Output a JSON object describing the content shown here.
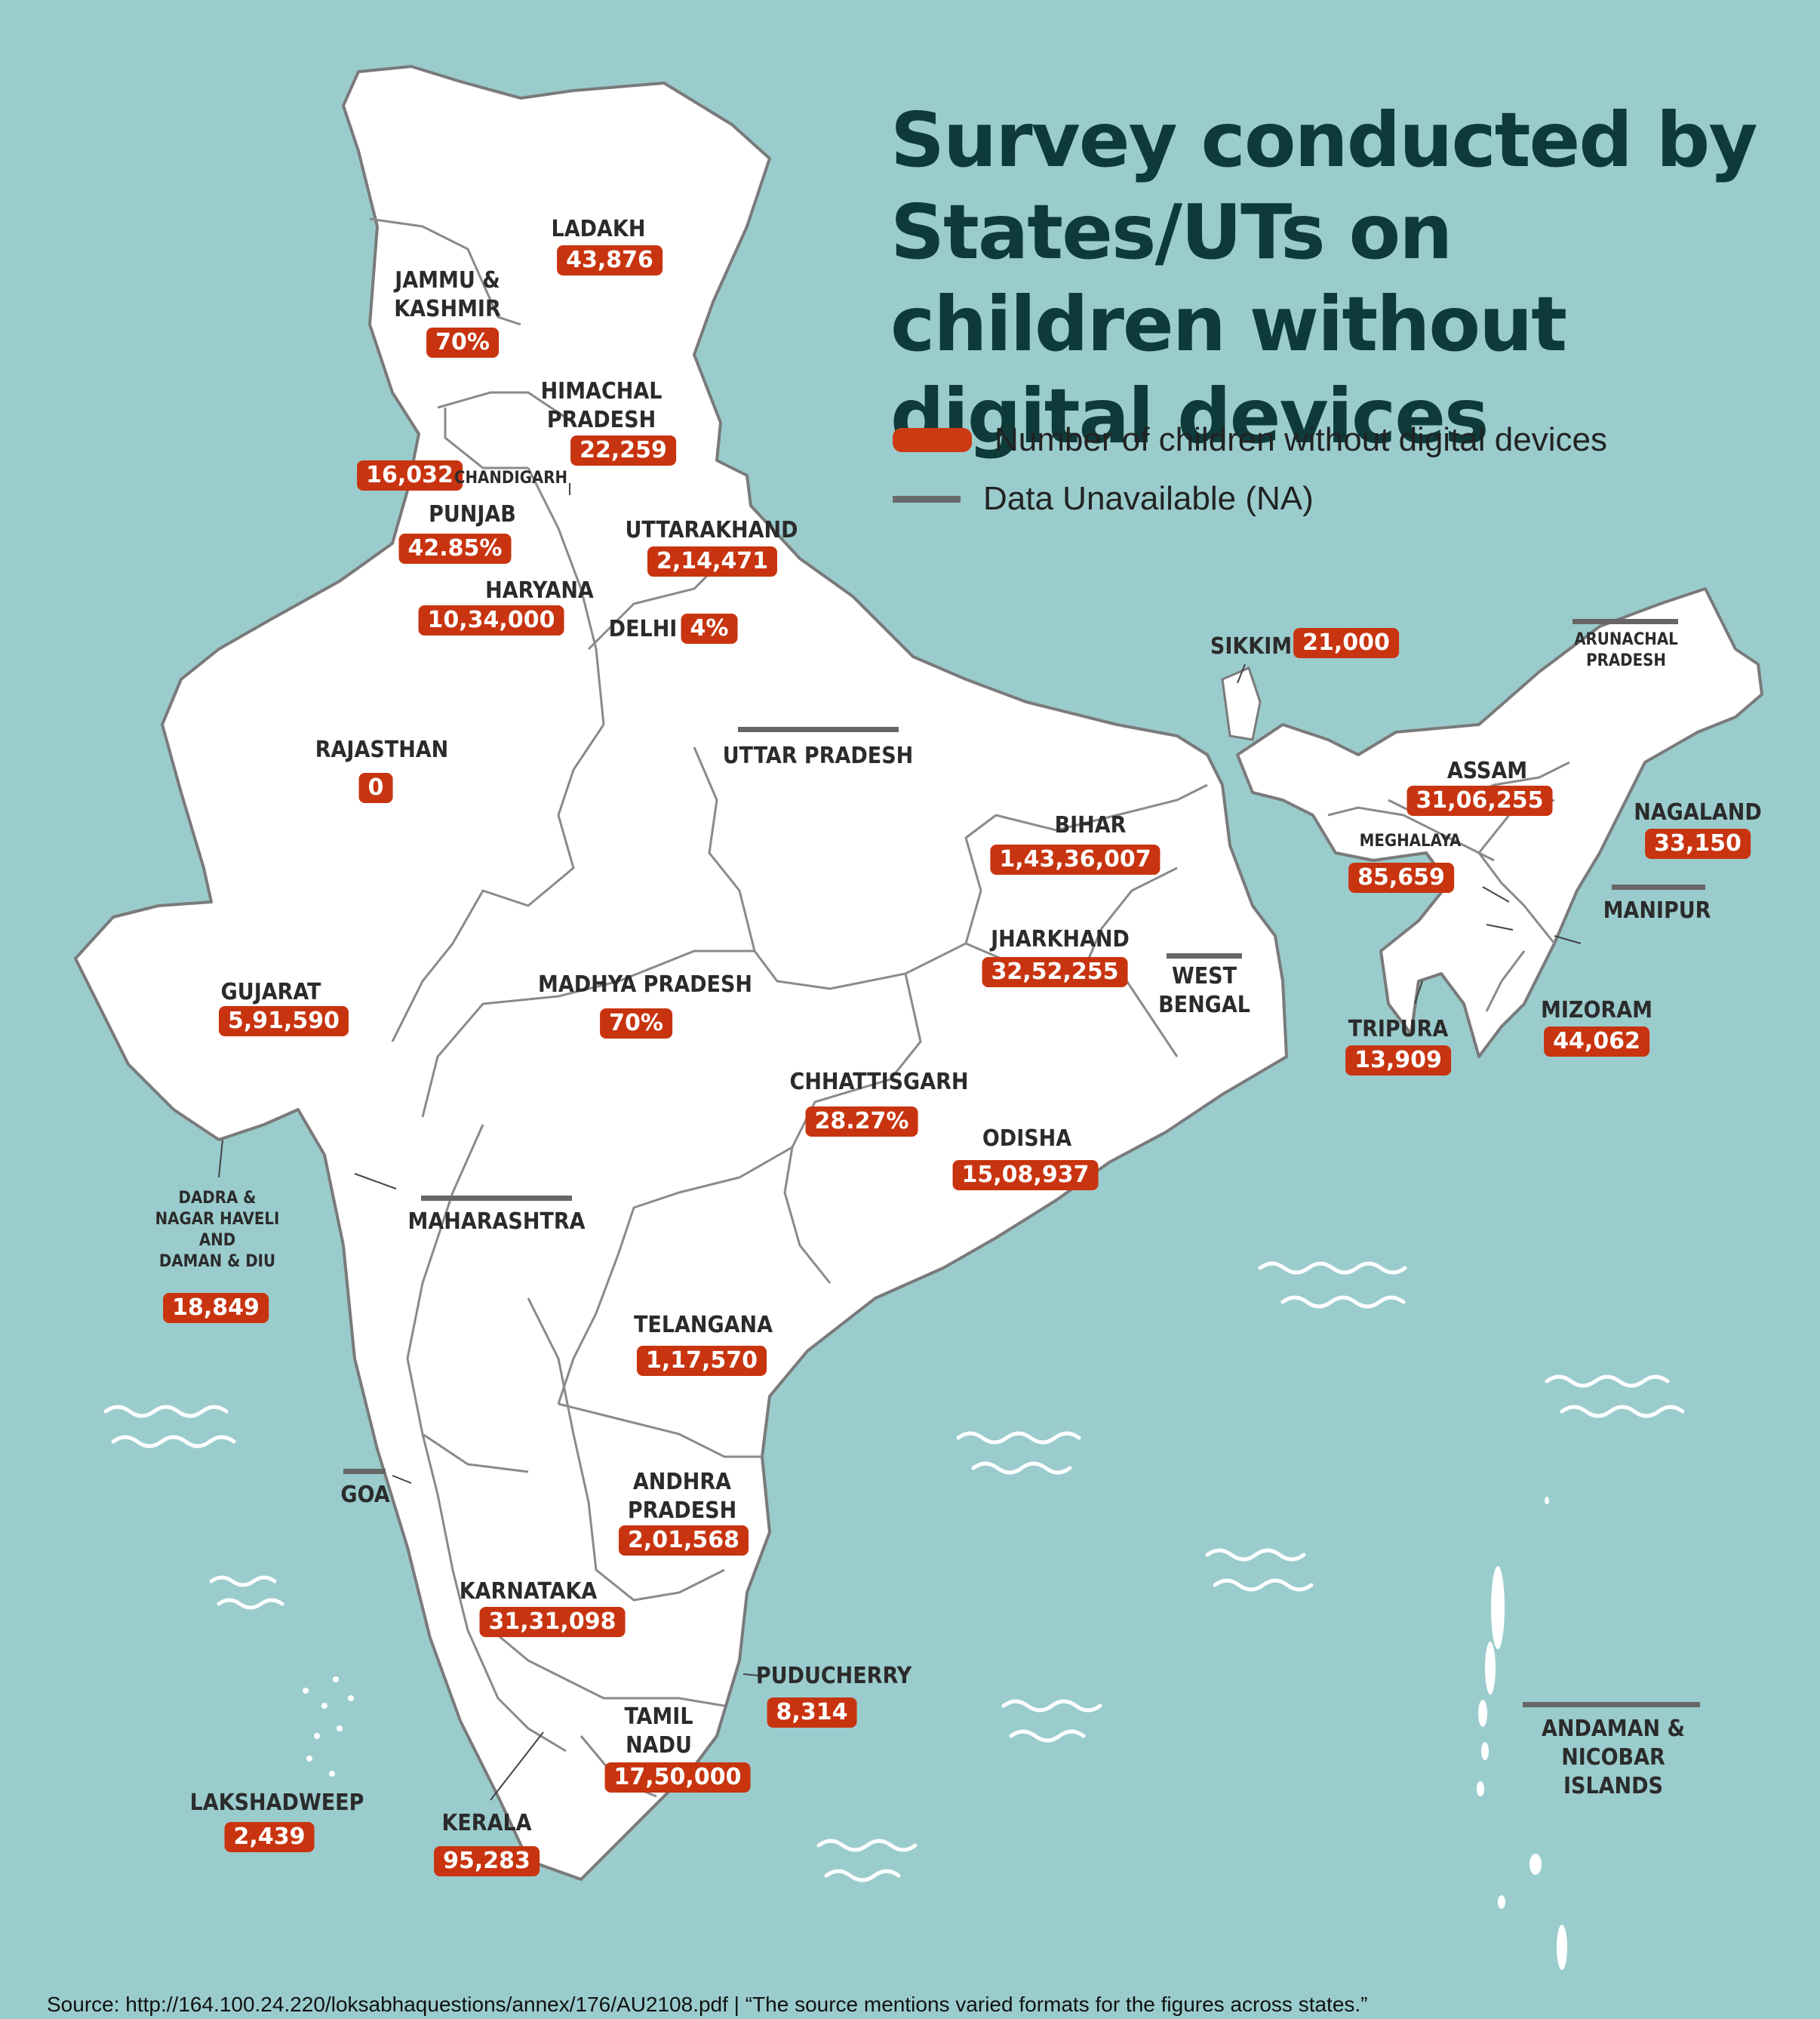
{
  "title": "Survey conducted by States/UTs on children without digital devices",
  "legend": {
    "value_label": "Number of children without digital devices",
    "na_label": "Data Unavailable (NA)",
    "value_color": "#c8340f",
    "na_color": "#666666"
  },
  "regions": [
    {
      "id": "ladakh",
      "name": "LADAKH",
      "value": "43,876"
    },
    {
      "id": "jammu-kashmir",
      "name": "JAMMU &\nKASHMIR",
      "value": "70%"
    },
    {
      "id": "himachal",
      "name": "HIMACHAL\nPRADESH",
      "value": "22,259"
    },
    {
      "id": "chandigarh",
      "name": "CHANDIGARH",
      "value": "16,032"
    },
    {
      "id": "punjab",
      "name": "PUNJAB",
      "value": "42.85%"
    },
    {
      "id": "uttarakhand",
      "name": "UTTARAKHAND",
      "value": "2,14,471"
    },
    {
      "id": "haryana",
      "name": "HARYANA",
      "value": "10,34,000"
    },
    {
      "id": "delhi",
      "name": "DELHI",
      "value": "4%"
    },
    {
      "id": "rajasthan",
      "name": "RAJASTHAN",
      "value": "0"
    },
    {
      "id": "uttar-pradesh",
      "name": "UTTAR PRADESH",
      "value": null
    },
    {
      "id": "bihar",
      "name": "BIHAR",
      "value": "1,43,36,007"
    },
    {
      "id": "sikkim",
      "name": "SIKKIM",
      "value": "21,000"
    },
    {
      "id": "arunachal",
      "name": "ARUNACHAL\nPRADESH",
      "value": null
    },
    {
      "id": "assam",
      "name": "ASSAM",
      "value": "31,06,255"
    },
    {
      "id": "nagaland",
      "name": "NAGALAND",
      "value": "33,150"
    },
    {
      "id": "meghalaya",
      "name": "MEGHALAYA",
      "value": "85,659"
    },
    {
      "id": "manipur",
      "name": "MANIPUR",
      "value": null
    },
    {
      "id": "tripura",
      "name": "TRIPURA",
      "value": "13,909"
    },
    {
      "id": "mizoram",
      "name": "MIZORAM",
      "value": "44,062"
    },
    {
      "id": "gujarat",
      "name": "GUJARAT",
      "value": "5,91,590"
    },
    {
      "id": "madhya-pradesh",
      "name": "MADHYA PRADESH",
      "value": "70%"
    },
    {
      "id": "jharkhand",
      "name": "JHARKHAND",
      "value": "32,52,255"
    },
    {
      "id": "west-bengal",
      "name": "WEST\nBENGAL",
      "value": null
    },
    {
      "id": "chhattisgarh",
      "name": "CHHATTISGARH",
      "value": "28.27%"
    },
    {
      "id": "odisha",
      "name": "ODISHA",
      "value": "15,08,937"
    },
    {
      "id": "dadra",
      "name": "DADRA &\nNAGAR HAVELI\nAND\nDAMAN & DIU",
      "value": "18,849"
    },
    {
      "id": "maharashtra",
      "name": "MAHARASHTRA",
      "value": null
    },
    {
      "id": "telangana",
      "name": "TELANGANA",
      "value": "1,17,570"
    },
    {
      "id": "goa",
      "name": "GOA",
      "value": null
    },
    {
      "id": "andhra",
      "name": "ANDHRA\nPRADESH",
      "value": "2,01,568"
    },
    {
      "id": "karnataka",
      "name": "KARNATAKA",
      "value": "31,31,098"
    },
    {
      "id": "puducherry",
      "name": "PUDUCHERRY",
      "value": "8,314"
    },
    {
      "id": "tamil-nadu",
      "name": "TAMIL\nNADU",
      "value": "17,50,000"
    },
    {
      "id": "kerala",
      "name": "KERALA",
      "value": "95,283"
    },
    {
      "id": "lakshadweep",
      "name": "LAKSHADWEEP",
      "value": "2,439"
    },
    {
      "id": "andaman",
      "name": "ANDAMAN &\nNICOBAR ISLANDS",
      "value": null
    }
  ],
  "source": "Source: http://164.100.24.220/loksabhaquestions/annex/176/AU2108.pdf | “The source mentions varied formats for the figures across states.”"
}
